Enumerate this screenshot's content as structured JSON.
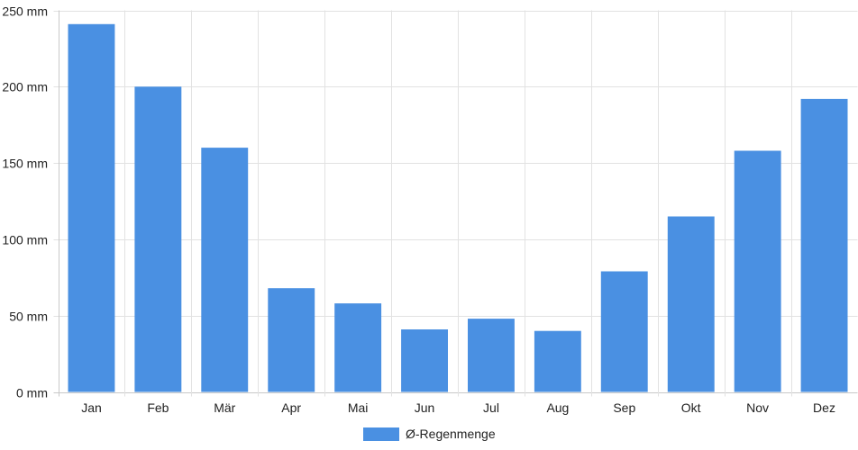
{
  "chart_data": {
    "type": "bar",
    "categories": [
      "Jan",
      "Feb",
      "Mär",
      "Apr",
      "Mai",
      "Jun",
      "Jul",
      "Aug",
      "Sep",
      "Okt",
      "Nov",
      "Dez"
    ],
    "series": [
      {
        "name": "Ø-Regenmenge",
        "color": "#4a90e2",
        "values": [
          241,
          200,
          160,
          68,
          58,
          41,
          48,
          40,
          79,
          115,
          158,
          192
        ]
      }
    ],
    "ylim": [
      0,
      250
    ],
    "yticks": [
      0,
      50,
      100,
      150,
      200,
      250
    ],
    "y_unit": "mm",
    "y_tick_labels": [
      "0 mm",
      "50 mm",
      "100 mm",
      "150 mm",
      "200 mm",
      "250 mm"
    ],
    "grid": true,
    "legend_position": "bottom-center"
  }
}
